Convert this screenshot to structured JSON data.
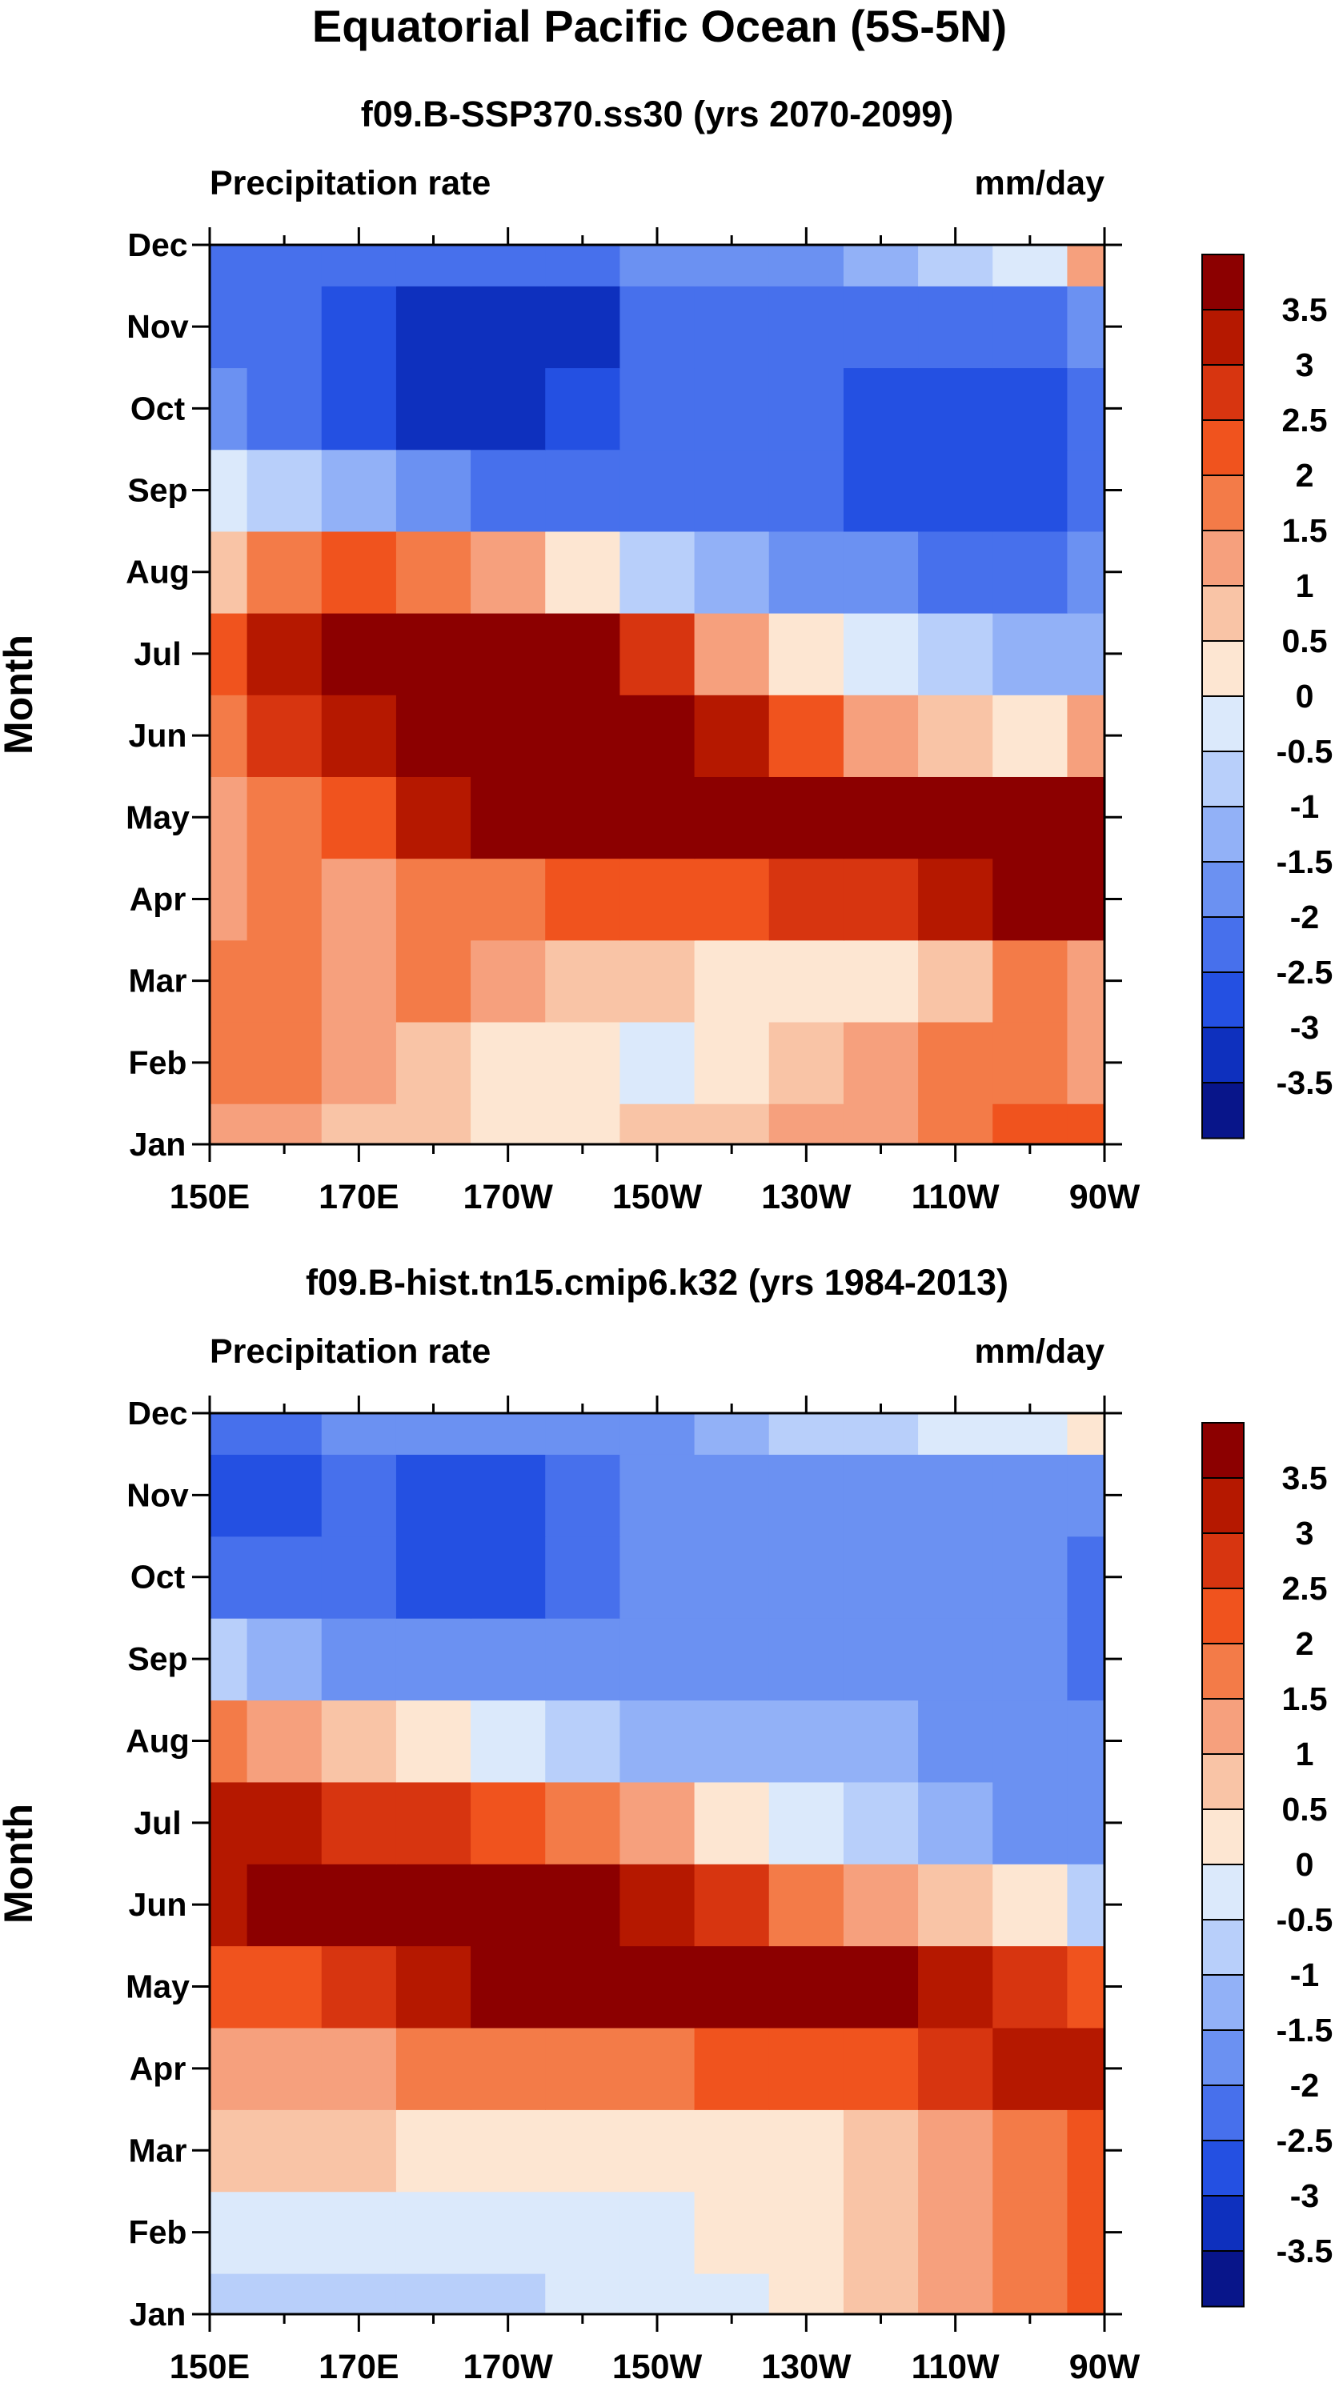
{
  "figure": {
    "title": "Equatorial Pacific Ocean (5S-5N)"
  },
  "colorbar_levels": [
    "3.5",
    "3",
    "2.5",
    "2",
    "1.5",
    "1",
    "0.5",
    "0",
    "-0.5",
    "-1",
    "-1.5",
    "-2",
    "-2.5",
    "-3",
    "-3.5"
  ],
  "colorbar_colors": [
    "#8c0000",
    "#b51800",
    "#d73510",
    "#f0531e",
    "#f37b48",
    "#f6a07d",
    "#f9c4a6",
    "#fde6d2",
    "#dbe9fb",
    "#b8cffa",
    "#92b1f7",
    "#6b91f2",
    "#4770ec",
    "#2450e2",
    "#0e30be",
    "#08158a"
  ],
  "chart_data": [
    {
      "type": "heatmap",
      "title": "f09.B-SSP370.ss30 (yrs 2070-2099)",
      "left_label": "Precipitation rate",
      "right_label": "mm/day",
      "ylabel": "Month",
      "xlabel": "",
      "x_ticks": [
        "150E",
        "170E",
        "170W",
        "150W",
        "130W",
        "110W",
        "90W"
      ],
      "y_ticks": [
        "Jan",
        "Feb",
        "Mar",
        "Apr",
        "May",
        "Jun",
        "Jul",
        "Aug",
        "Sep",
        "Oct",
        "Nov",
        "Dec"
      ],
      "x_nodes": [
        "150E",
        "160E",
        "170E",
        "180",
        "170W",
        "160W",
        "150W",
        "140W",
        "130W",
        "120W",
        "110W",
        "100W",
        "90W"
      ],
      "z": [
        [
          1.0,
          1.0,
          0.5,
          0.5,
          0.0,
          0.0,
          0.5,
          0.5,
          1.0,
          1.0,
          1.5,
          2.0,
          2.0
        ],
        [
          1.5,
          1.5,
          1.0,
          0.5,
          0.0,
          0.0,
          -0.5,
          0.0,
          0.5,
          1.0,
          1.5,
          1.5,
          1.0
        ],
        [
          1.5,
          1.5,
          1.0,
          1.5,
          1.0,
          0.5,
          0.5,
          0.0,
          0.0,
          0.0,
          0.5,
          1.5,
          1.0
        ],
        [
          1.0,
          1.5,
          1.0,
          1.5,
          1.5,
          2.0,
          2.0,
          2.0,
          2.5,
          2.5,
          3.0,
          3.5,
          3.5
        ],
        [
          1.0,
          1.5,
          2.0,
          3.0,
          4.0,
          4.0,
          4.0,
          4.0,
          4.0,
          4.0,
          4.0,
          4.0,
          3.5
        ],
        [
          1.5,
          2.5,
          3.0,
          4.0,
          4.0,
          4.0,
          4.0,
          3.0,
          2.0,
          1.0,
          0.5,
          0.0,
          1.0
        ],
        [
          2.0,
          3.0,
          3.5,
          3.5,
          4.0,
          3.5,
          2.5,
          1.0,
          0.0,
          -0.5,
          -1.0,
          -1.5,
          -1.5
        ],
        [
          0.5,
          1.5,
          2.0,
          1.5,
          1.0,
          0.0,
          -1.0,
          -1.5,
          -2.0,
          -2.0,
          -2.5,
          -2.5,
          -2.0
        ],
        [
          -0.5,
          -1.0,
          -1.5,
          -2.0,
          -2.5,
          -2.5,
          -2.5,
          -2.5,
          -2.5,
          -3.0,
          -3.0,
          -3.0,
          -2.5
        ],
        [
          -2.0,
          -2.5,
          -3.0,
          -3.5,
          -3.5,
          -3.0,
          -2.5,
          -2.5,
          -2.5,
          -3.0,
          -3.0,
          -3.0,
          -2.5
        ],
        [
          -2.5,
          -2.5,
          -3.0,
          -3.5,
          -3.5,
          -3.5,
          -2.5,
          -2.5,
          -2.5,
          -2.5,
          -2.5,
          -2.5,
          -2.0
        ],
        [
          -2.5,
          -2.5,
          -2.5,
          -2.5,
          -2.5,
          -2.5,
          -2.0,
          -2.0,
          -2.0,
          -1.5,
          -1.0,
          -0.5,
          1.0
        ]
      ]
    },
    {
      "type": "heatmap",
      "title": "f09.B-hist.tn15.cmip6.k32 (yrs 1984-2013)",
      "left_label": "Precipitation rate",
      "right_label": "mm/day",
      "ylabel": "Month",
      "xlabel": "",
      "x_ticks": [
        "150E",
        "170E",
        "170W",
        "150W",
        "130W",
        "110W",
        "90W"
      ],
      "y_ticks": [
        "Jan",
        "Feb",
        "Mar",
        "Apr",
        "May",
        "Jun",
        "Jul",
        "Aug",
        "Sep",
        "Oct",
        "Nov",
        "Dec"
      ],
      "x_nodes": [
        "150E",
        "160E",
        "170E",
        "180",
        "170W",
        "160W",
        "150W",
        "140W",
        "130W",
        "120W",
        "110W",
        "100W",
        "90W"
      ],
      "z": [
        [
          -1.0,
          -1.0,
          -1.0,
          -1.0,
          -1.0,
          -0.5,
          -0.5,
          -0.5,
          0.0,
          0.5,
          1.0,
          1.5,
          2.0
        ],
        [
          -0.5,
          -0.5,
          -0.5,
          -0.5,
          -0.5,
          -0.5,
          -0.5,
          0.0,
          0.0,
          0.5,
          1.0,
          1.5,
          2.0
        ],
        [
          0.5,
          0.5,
          0.5,
          0.0,
          0.0,
          0.0,
          0.0,
          0.0,
          0.0,
          0.5,
          1.0,
          1.5,
          2.0
        ],
        [
          1.0,
          1.0,
          1.0,
          1.5,
          1.5,
          1.5,
          1.5,
          2.0,
          2.0,
          2.0,
          2.5,
          3.0,
          3.0
        ],
        [
          2.0,
          2.0,
          2.5,
          3.0,
          4.0,
          4.0,
          4.0,
          4.0,
          4.0,
          4.0,
          3.0,
          2.5,
          2.0
        ],
        [
          3.0,
          3.5,
          3.5,
          4.0,
          4.0,
          3.5,
          3.0,
          2.5,
          1.5,
          1.0,
          0.5,
          0.0,
          -1.0
        ],
        [
          3.0,
          3.0,
          2.5,
          2.5,
          2.0,
          1.5,
          1.0,
          0.0,
          -0.5,
          -1.0,
          -1.5,
          -2.0,
          -2.0
        ],
        [
          1.5,
          1.0,
          0.5,
          0.0,
          -0.5,
          -1.0,
          -1.5,
          -1.5,
          -1.5,
          -1.5,
          -2.0,
          -2.0,
          -2.0
        ],
        [
          -1.0,
          -1.5,
          -2.0,
          -2.0,
          -2.0,
          -2.0,
          -2.0,
          -2.0,
          -2.0,
          -2.0,
          -2.0,
          -2.0,
          -2.5
        ],
        [
          -2.5,
          -2.5,
          -2.5,
          -3.0,
          -3.0,
          -2.5,
          -2.0,
          -2.0,
          -2.0,
          -2.0,
          -2.0,
          -2.0,
          -2.5
        ],
        [
          -3.0,
          -3.0,
          -2.5,
          -3.0,
          -3.0,
          -2.5,
          -2.0,
          -2.0,
          -2.0,
          -2.0,
          -2.0,
          -2.0,
          -2.0
        ],
        [
          -2.5,
          -2.5,
          -2.0,
          -2.0,
          -2.0,
          -2.0,
          -2.0,
          -1.5,
          -1.0,
          -1.0,
          -0.5,
          -0.5,
          0.0
        ]
      ]
    }
  ]
}
